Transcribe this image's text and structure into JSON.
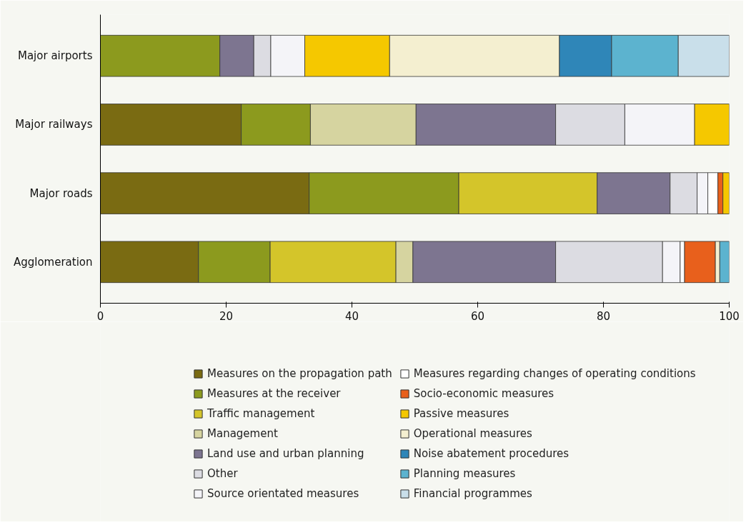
{
  "chart_data": {
    "type": "bar",
    "orientation": "horizontal",
    "stacked": true,
    "categories": [
      "Major airports",
      "Major railways",
      "Major roads",
      "Agglomeration"
    ],
    "xlim": [
      0,
      100
    ],
    "xticks": [
      0,
      20,
      40,
      60,
      80,
      100
    ],
    "grid": false,
    "legend": "bottom",
    "series": [
      {
        "name": "Measures on the propagation path",
        "color": "#7a6b12",
        "values": [
          null,
          22.4,
          33.2,
          15.6
        ]
      },
      {
        "name": "Measures at the receiver",
        "color": "#8c9a1e",
        "values": [
          19.0,
          11.0,
          23.8,
          11.4
        ]
      },
      {
        "name": "Traffic management",
        "color": "#d4c52a",
        "values": [
          null,
          null,
          22.0,
          20.0
        ]
      },
      {
        "name": "Management",
        "color": "#d6d4a0",
        "values": [
          null,
          16.8,
          null,
          2.7
        ]
      },
      {
        "name": "Land use and urban planning",
        "color": "#7d7590",
        "values": [
          5.4,
          22.2,
          11.6,
          22.7
        ]
      },
      {
        "name": "Other",
        "color": "#dcdce2",
        "values": [
          2.7,
          11.0,
          4.3,
          17.0
        ]
      },
      {
        "name": "Source orientated measures",
        "color": "#f4f4f8",
        "values": [
          5.4,
          11.1,
          1.7,
          2.8
        ]
      },
      {
        "name": "Measures regarding changes of operating conditions",
        "color": "#ffffff",
        "values": [
          null,
          null,
          1.6,
          0.7
        ]
      },
      {
        "name": "Socio-economic measures",
        "color": "#e8601c",
        "values": [
          null,
          null,
          0.8,
          4.9
        ]
      },
      {
        "name": "Passive measures",
        "color": "#f5c800",
        "values": [
          13.5,
          5.5,
          1.0,
          null
        ]
      },
      {
        "name": "Operational measures",
        "color": "#f4efd0",
        "values": [
          27.0,
          null,
          null,
          0.7
        ]
      },
      {
        "name": "Noise abatement procedures",
        "color": "#2f86b8",
        "values": [
          8.3,
          null,
          null,
          null
        ]
      },
      {
        "name": "Planning measures",
        "color": "#5cb3cf",
        "values": [
          10.6,
          null,
          null,
          1.5
        ]
      },
      {
        "name": "Financial programmes",
        "color": "#c9dfea",
        "values": [
          8.1,
          null,
          null,
          null
        ]
      }
    ]
  }
}
